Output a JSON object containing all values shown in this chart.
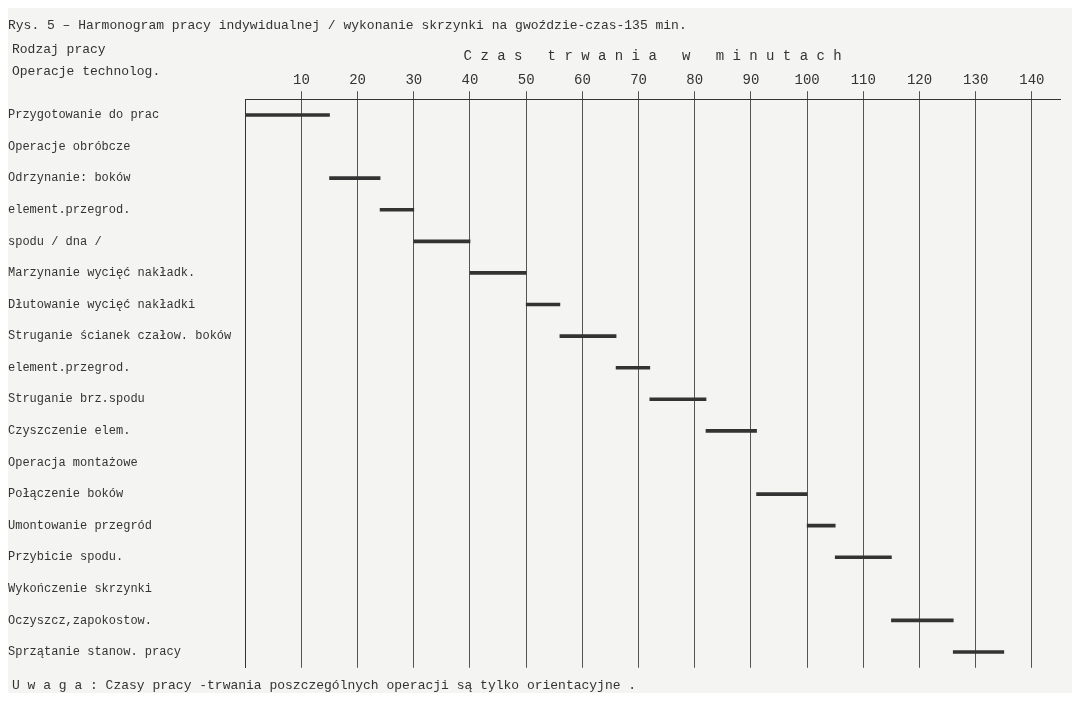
{
  "chart_data": {
    "type": "bar",
    "orientation": "horizontal",
    "title": "Rys. 5 – Harmonogram pracy indywidualnej / wykonanie skrzynki na gwoździe-czas-135 min.",
    "xlabel": "C z a s   t r w a n i a   w   m i n u t a c h",
    "ylabel": "Rodzaj pracy Operacje technolog.",
    "categories": [
      "Przygotowanie do prac",
      "Operacje obróbcze",
      "Odrzynanie: boków",
      "element.przegrod.",
      "spodu / dna /",
      "Marzynanie wycięć nakładk.",
      "Dłutowanie wycięć nakładki",
      "Struganie ścianek czałow. boków",
      "element.przegrod.",
      "Struganie brz.spodu",
      "Czyszczenie elem.",
      "Operacja montażowe",
      "Połączenie boków",
      "Umontowanie przegród",
      "Przybicie spodu.",
      "Wykończenie skrzynki",
      "Oczyszcz,zapokostow.",
      "Sprzątanie stanow. pracy"
    ],
    "base": [
      0,
      null,
      15,
      24,
      30,
      40,
      50,
      56,
      66,
      72,
      82,
      null,
      91,
      100,
      105,
      null,
      115,
      126
    ],
    "values": [
      15,
      null,
      9,
      6,
      10,
      10,
      6,
      10,
      6,
      10,
      9,
      null,
      9,
      5,
      10,
      null,
      11,
      9
    ],
    "color": "#333333",
    "xlim": [
      0,
      145
    ],
    "xticks": [
      10,
      20,
      30,
      40,
      50,
      60,
      70,
      80,
      90,
      100,
      110,
      120,
      130,
      140
    ],
    "grid": "x",
    "legend": false,
    "annotations": [
      "U w a g a : Czasy pracy -trwania poszczególnych operacji są tylko orientacyjne ."
    ]
  }
}
